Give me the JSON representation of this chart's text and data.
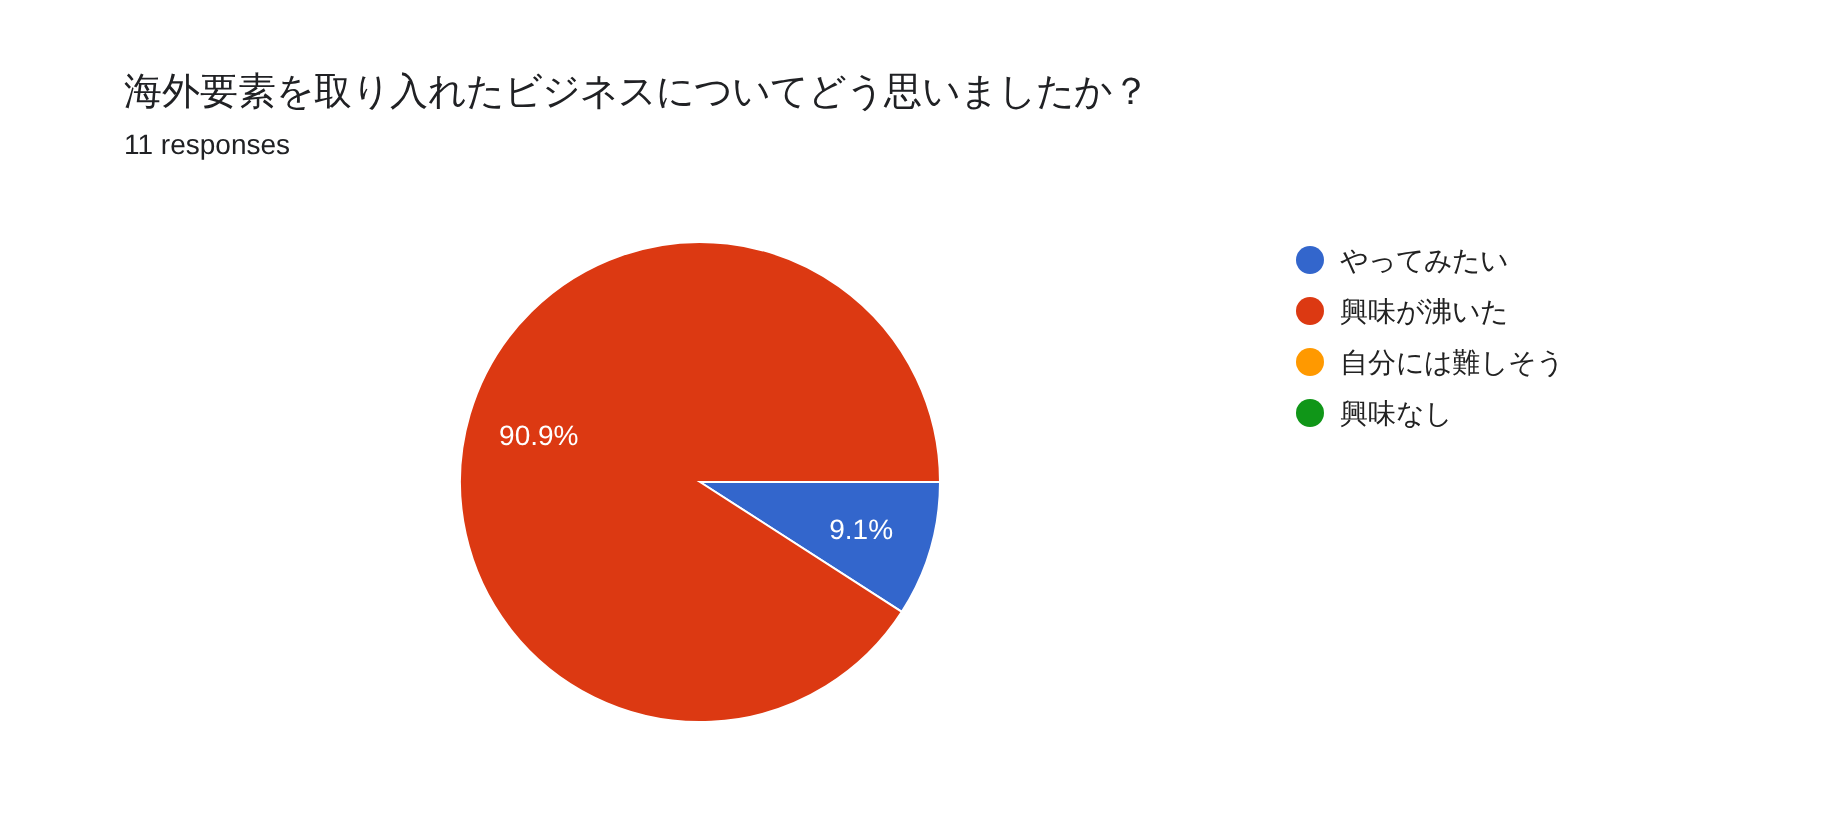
{
  "chart_data": {
    "type": "pie",
    "title": "海外要素を取り入れたビジネスについてどう思いましたか？",
    "subtitle": "11 responses",
    "categories": [
      "やってみたい",
      "興味が沸いた",
      "自分には難しそう",
      "興味なし"
    ],
    "values": [
      9.1,
      90.9,
      0,
      0
    ],
    "colors": [
      "#3366cc",
      "#dc3912",
      "#ff9900",
      "#109618"
    ],
    "value_labels": [
      "9.1%",
      "90.9%",
      null,
      null
    ],
    "legend": "right"
  }
}
